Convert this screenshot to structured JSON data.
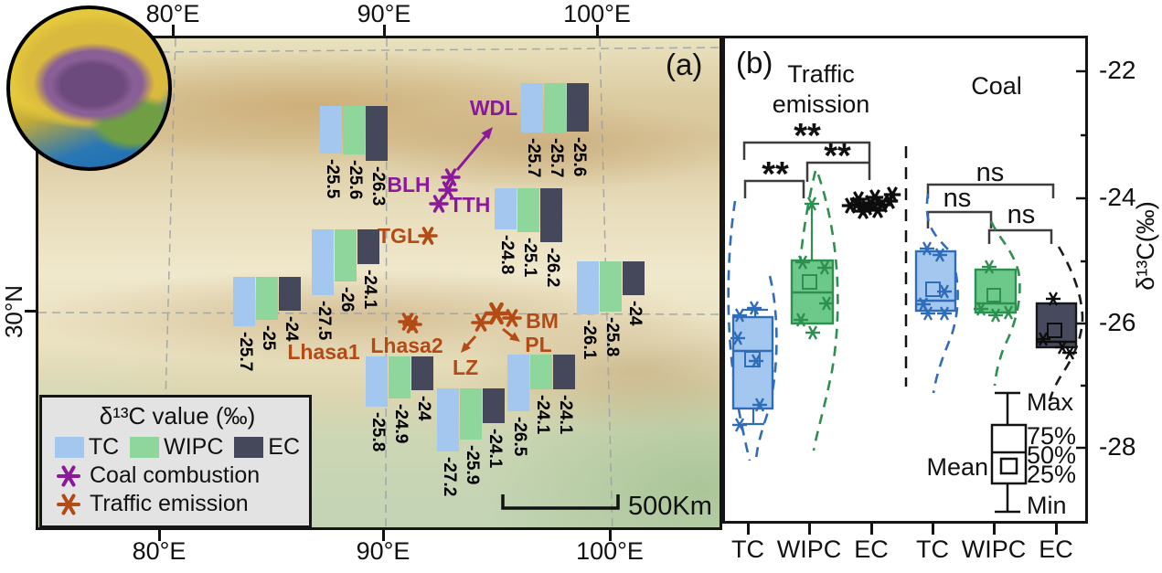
{
  "panels": {
    "a_label": "(a)",
    "b_label": "(b)"
  },
  "colors": {
    "tc": "#a3c7ee",
    "wipc": "#8ed69b",
    "ec": "#45475a",
    "tc_edge": "#2f6db8",
    "wipc_edge": "#2e9050",
    "ec_edge": "#16181f",
    "coal_marker": "#8b1a9b",
    "traffic_marker": "#b34b16",
    "legend_bg": "#e3e3e3"
  },
  "map": {
    "axis": {
      "top": [
        "80°E",
        "90°E",
        "100°E"
      ],
      "bottom": [
        "80°E",
        "90°E",
        "100°E"
      ],
      "left": [
        "30°N"
      ]
    },
    "scale_bar_label": "500Km",
    "legend": {
      "title": "δ¹³C value (‰)",
      "series": [
        {
          "label": "TC"
        },
        {
          "label": "WIPC"
        },
        {
          "label": "EC"
        }
      ],
      "markers": [
        {
          "label": "Coal combustion"
        },
        {
          "label": "Traffic emission"
        }
      ]
    },
    "sites": [
      {
        "name": "BLH",
        "source": "coal",
        "values": {
          "TC": "-25.5",
          "WIPC": "-25.6",
          "EC": "-26.3"
        }
      },
      {
        "name": "WDL",
        "source": "coal",
        "values": {
          "TC": "-25.7",
          "WIPC": "-25.7",
          "EC": "-25.6"
        }
      },
      {
        "name": "TTH",
        "source": "coal",
        "values": {
          "TC": "-24.8",
          "WIPC": "-25.1",
          "EC": "-26.2"
        }
      },
      {
        "name": "TGL",
        "source": "traffic",
        "values": {
          "TC": "-27.5",
          "WIPC": "-26",
          "EC": "-24.1"
        }
      },
      {
        "name": "Lhasa1",
        "source": "traffic",
        "values": {
          "TC": "-25.7",
          "WIPC": "-25",
          "EC": "-24"
        }
      },
      {
        "name": "Lhasa2",
        "source": "traffic",
        "values": {
          "TC": "-25.8",
          "WIPC": "-24.9",
          "EC": "-24"
        }
      },
      {
        "name": "LZ",
        "source": "traffic",
        "values": {
          "TC": "-27.2",
          "WIPC": "-25.9",
          "EC": "-24.1"
        }
      },
      {
        "name": "PL",
        "source": "traffic",
        "values": {
          "TC": "-26.5",
          "WIPC": "-24.1",
          "EC": "-24.1"
        }
      },
      {
        "name": "BM",
        "source": "traffic",
        "values": {
          "TC": "-26.1",
          "WIPC": "-25.8",
          "EC": "-24"
        }
      }
    ]
  },
  "boxplot_panel": {
    "title_traffic_line1": "Traffic",
    "title_traffic_line2": "emission",
    "title_coal": "Coal",
    "ylabel": "δ¹³C(‰)",
    "yticks": [
      "-22",
      "-24",
      "-26",
      "-28"
    ],
    "xticks": [
      "TC",
      "WIPC",
      "EC",
      "TC",
      "WIPC",
      "EC"
    ],
    "box_legend": {
      "max": "Max",
      "p75": "75%",
      "p50": "50%",
      "p25": "25%",
      "min": "Min",
      "mean": "Mean"
    }
  },
  "chart_data": {
    "type": "boxplot",
    "title": "δ13C of carbon fractions from traffic emission and coal combustion",
    "ylabel": "δ¹³C(‰)",
    "ylim": [
      -29,
      -21.3
    ],
    "yticks": [
      -22,
      -24,
      -26,
      -28
    ],
    "categories": [
      "TC",
      "WIPC",
      "EC",
      "TC",
      "WIPC",
      "EC"
    ],
    "groups": [
      {
        "title": "Traffic emission",
        "boxes": [
          {
            "category": "TC",
            "max": -25.8,
            "q75": -25.9,
            "median": -26.45,
            "mean": -26.6,
            "q25": -27.4,
            "min": -27.6,
            "points": [
              -25.8,
              -25.9,
              -26.3,
              -26.6,
              -27.3,
              -27.6
            ]
          },
          {
            "category": "WIPC",
            "max": -24.1,
            "q75": -25.0,
            "median": -25.5,
            "mean": -25.35,
            "q25": -26.0,
            "min": -26.2,
            "points": [
              -24.1,
              -25.0,
              -25.1,
              -25.7,
              -25.9,
              -26.1
            ]
          },
          {
            "category": "EC",
            "note": "tight cluster of points near -24",
            "points": [
              -24.0,
              -24.1,
              -24.05,
              -24.1,
              -24.0,
              -24.05,
              -24.1,
              -23.95
            ]
          }
        ],
        "significance": [
          {
            "pair": "TC vs EC",
            "label": "**"
          },
          {
            "pair": "WIPC vs EC",
            "label": "**"
          },
          {
            "pair": "TC vs WIPC",
            "label": "**"
          }
        ]
      },
      {
        "title": "Coal",
        "boxes": [
          {
            "category": "TC",
            "q75": -24.9,
            "median": -25.65,
            "mean": -25.5,
            "q25": -25.8,
            "points": [
              -24.8,
              -24.9,
              -25.5,
              -25.7,
              -25.8,
              -25.9
            ]
          },
          {
            "category": "WIPC",
            "q75": -25.2,
            "median": -25.7,
            "mean": -25.6,
            "q25": -25.85,
            "points": [
              -25.1,
              -25.8,
              -25.9,
              -25.85
            ]
          },
          {
            "category": "EC",
            "q75": -25.7,
            "median": -26.3,
            "mean": -26.15,
            "q25": -26.4,
            "points": [
              -25.6,
              -26.3,
              -26.4,
              -26.5
            ]
          }
        ],
        "significance": [
          {
            "pair": "TC vs EC",
            "label": "ns"
          },
          {
            "pair": "TC vs WIPC",
            "label": "ns"
          },
          {
            "pair": "WIPC vs EC",
            "label": "ns"
          }
        ]
      }
    ]
  }
}
